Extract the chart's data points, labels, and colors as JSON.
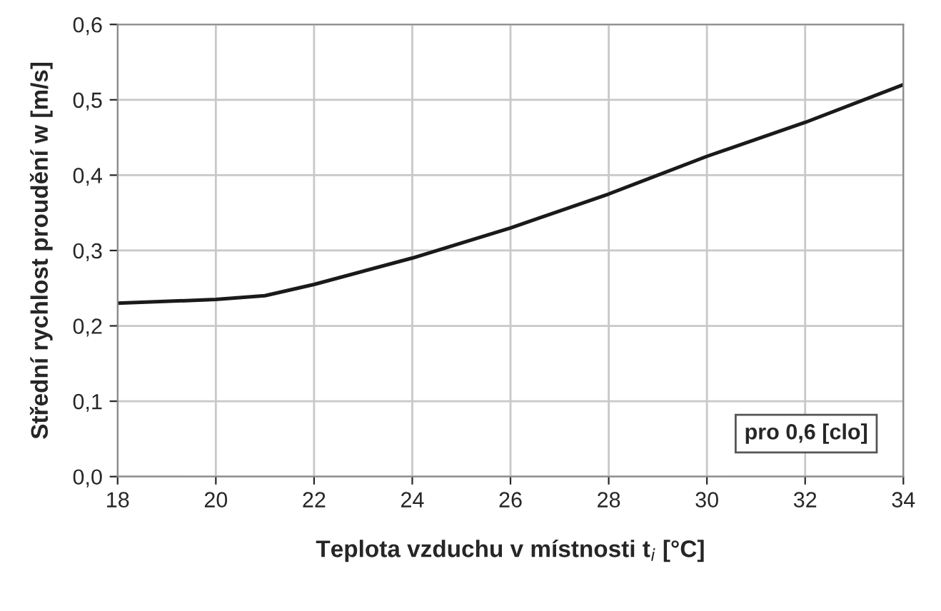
{
  "chart_data": {
    "type": "line",
    "xlabel": "Teplota vzduchu v místnosti t$_{i}$ [°C]",
    "ylabel": "Střední rychlost proudění w [m/s]",
    "x": [
      18,
      20,
      21,
      22,
      24,
      26,
      28,
      30,
      32,
      34
    ],
    "series": [
      {
        "color": "#1a1a1a",
        "values": [
          0.23,
          0.235,
          0.24,
          0.255,
          0.29,
          0.33,
          0.375,
          0.425,
          0.47,
          0.52
        ]
      }
    ],
    "xlim": [
      18,
      34
    ],
    "xticks": [
      18,
      20,
      22,
      24,
      26,
      28,
      30,
      32,
      34
    ],
    "ylim": [
      0,
      0.6
    ],
    "yticks": [
      {
        "value": 0,
        "label": "0,0"
      },
      {
        "value": 0.1,
        "label": "0,1"
      },
      {
        "value": 0.2,
        "label": "0,2"
      },
      {
        "value": 0.3,
        "label": "0,3"
      },
      {
        "value": 0.4,
        "label": "0,4"
      },
      {
        "value": 0.5,
        "label": "0,5"
      },
      {
        "value": 0.6,
        "label": "0,6"
      }
    ],
    "annotations": [
      "pro 0,6 [clo]"
    ],
    "grid": true,
    "marker": "none",
    "line_style": "solid"
  }
}
